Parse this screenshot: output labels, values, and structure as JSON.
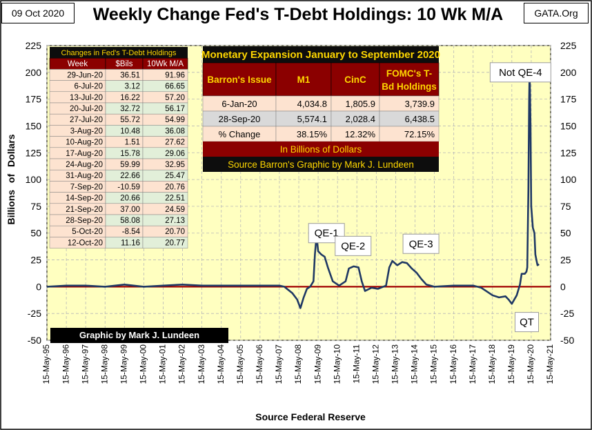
{
  "header": {
    "date": "09 Oct 2020",
    "title": "Weekly Change Fed's T-Debt Holdings: 10 Wk M/A",
    "site": "GATA.Org"
  },
  "axes": {
    "ylabel": "Billions  of  Dollars",
    "xtitle": "Source Federal Reserve",
    "credit": "Graphic by Mark J. Lundeen"
  },
  "chart_data": {
    "type": "line",
    "title": "Weekly Change Fed's T-Debt Holdings: 10 Wk M/A",
    "xlabel": "Source Federal Reserve",
    "ylabel": "Billions of Dollars",
    "ylim": [
      -50,
      225
    ],
    "yticks": [
      -50,
      -25,
      0,
      25,
      50,
      75,
      100,
      125,
      150,
      175,
      200,
      225
    ],
    "xlim": [
      "1995-05-15",
      "2021-05-15"
    ],
    "xticks": [
      "15-May-95",
      "15-May-96",
      "15-May-97",
      "15-May-98",
      "15-May-99",
      "15-May-00",
      "15-May-01",
      "15-May-02",
      "15-May-03",
      "15-May-04",
      "15-May-05",
      "15-May-06",
      "15-May-07",
      "15-May-08",
      "15-May-09",
      "15-May-10",
      "15-May-11",
      "15-May-12",
      "15-May-13",
      "15-May-14",
      "15-May-15",
      "15-May-16",
      "15-May-17",
      "15-May-18",
      "15-May-19",
      "15-May-20",
      "15-May-21"
    ],
    "grid": true,
    "line_color": "#1f3864",
    "zero_line_color": "#a00000",
    "plot_bg": "#ffffc0",
    "series": [
      {
        "values": [
          [
            "1995-05-15",
            0
          ],
          [
            "1996-05-15",
            1
          ],
          [
            "1997-05-15",
            1
          ],
          [
            "1998-05-15",
            0
          ],
          [
            "1999-05-15",
            2
          ],
          [
            "2000-05-15",
            0
          ],
          [
            "2001-05-15",
            1
          ],
          [
            "2002-05-15",
            2
          ],
          [
            "2003-05-15",
            1
          ],
          [
            "2004-05-15",
            1
          ],
          [
            "2005-05-15",
            1
          ],
          [
            "2006-05-15",
            1
          ],
          [
            "2007-05-15",
            1
          ],
          [
            "2007-08-15",
            0
          ],
          [
            "2008-01-15",
            -6
          ],
          [
            "2008-04-15",
            -12
          ],
          [
            "2008-06-15",
            -20
          ],
          [
            "2008-08-15",
            -10
          ],
          [
            "2008-10-15",
            -2
          ],
          [
            "2008-12-15",
            0
          ],
          [
            "2009-02-15",
            5
          ],
          [
            "2009-03-15",
            30
          ],
          [
            "2009-04-15",
            48
          ],
          [
            "2009-05-15",
            33
          ],
          [
            "2009-07-15",
            30
          ],
          [
            "2009-09-15",
            28
          ],
          [
            "2009-11-15",
            18
          ],
          [
            "2010-02-15",
            5
          ],
          [
            "2010-06-15",
            1
          ],
          [
            "2010-10-15",
            5
          ],
          [
            "2010-12-15",
            17
          ],
          [
            "2011-03-15",
            19
          ],
          [
            "2011-06-15",
            18
          ],
          [
            "2011-08-15",
            5
          ],
          [
            "2011-10-15",
            -4
          ],
          [
            "2012-02-15",
            -1
          ],
          [
            "2012-06-15",
            -2
          ],
          [
            "2012-11-15",
            1
          ],
          [
            "2013-01-15",
            18
          ],
          [
            "2013-03-15",
            24
          ],
          [
            "2013-06-15",
            20
          ],
          [
            "2013-09-15",
            23
          ],
          [
            "2013-12-15",
            22
          ],
          [
            "2014-03-15",
            17
          ],
          [
            "2014-06-15",
            13
          ],
          [
            "2014-09-15",
            7
          ],
          [
            "2014-12-15",
            2
          ],
          [
            "2015-05-15",
            0
          ],
          [
            "2016-05-15",
            1
          ],
          [
            "2017-05-15",
            1
          ],
          [
            "2017-10-15",
            -1
          ],
          [
            "2018-01-15",
            -4
          ],
          [
            "2018-05-15",
            -8
          ],
          [
            "2018-09-15",
            -10
          ],
          [
            "2019-01-15",
            -9
          ],
          [
            "2019-03-15",
            -12
          ],
          [
            "2019-05-15",
            -16
          ],
          [
            "2019-08-15",
            -8
          ],
          [
            "2019-10-15",
            2
          ],
          [
            "2019-11-15",
            12
          ],
          [
            "2020-01-15",
            12
          ],
          [
            "2020-02-15",
            14
          ],
          [
            "2020-03-01",
            18
          ],
          [
            "2020-03-22",
            90
          ],
          [
            "2020-04-05",
            175
          ],
          [
            "2020-04-15",
            202
          ],
          [
            "2020-05-01",
            150
          ],
          [
            "2020-05-15",
            75
          ],
          [
            "2020-06-15",
            55
          ],
          [
            "2020-07-15",
            50
          ],
          [
            "2020-08-01",
            30
          ],
          [
            "2020-08-20",
            25
          ],
          [
            "2020-09-10",
            20
          ],
          [
            "2020-10-09",
            21
          ]
        ]
      }
    ],
    "annotations": [
      {
        "label": "QE-1",
        "x": "2008-11-15",
        "y": 50
      },
      {
        "label": "QE-2",
        "x": "2010-04-01",
        "y": 38
      },
      {
        "label": "QE-3",
        "x": "2013-10-01",
        "y": 40
      },
      {
        "label": "Not QE-4",
        "x": "2018-04-01",
        "y": 200
      },
      {
        "label": "QT",
        "x": "2019-07-15",
        "y": -33
      }
    ]
  },
  "table_left": {
    "caption": "Changes in Fed's T-Debt Holdings",
    "headers": [
      "Week",
      "$Bils",
      "10Wk M/A"
    ],
    "rows": [
      [
        "29-Jun-20",
        "36.51",
        "91.96"
      ],
      [
        "6-Jul-20",
        "3.12",
        "66.65"
      ],
      [
        "13-Jul-20",
        "16.22",
        "57.20"
      ],
      [
        "20-Jul-20",
        "32.72",
        "56.17"
      ],
      [
        "27-Jul-20",
        "55.72",
        "54.99"
      ],
      [
        "3-Aug-20",
        "10.48",
        "36.08"
      ],
      [
        "10-Aug-20",
        "1.51",
        "27.62"
      ],
      [
        "17-Aug-20",
        "15.78",
        "29.06"
      ],
      [
        "24-Aug-20",
        "59.99",
        "32.95"
      ],
      [
        "31-Aug-20",
        "22.66",
        "25.47"
      ],
      [
        "7-Sep-20",
        "-10.59",
        "20.76"
      ],
      [
        "14-Sep-20",
        "20.66",
        "22.51"
      ],
      [
        "21-Sep-20",
        "37.00",
        "24.59"
      ],
      [
        "28-Sep-20",
        "58.08",
        "27.13"
      ],
      [
        "5-Oct-20",
        "-8.54",
        "20.70"
      ],
      [
        "12-Oct-20",
        "11.16",
        "20.77"
      ]
    ]
  },
  "table_right": {
    "caption": "Monetary Expansion January to September 2020",
    "headers": [
      "Barron's Issue",
      "M1",
      "CinC",
      "FOMC's T-Bd Holdings"
    ],
    "rows": [
      [
        "6-Jan-20",
        "4,034.8",
        "1,805.9",
        "3,739.9"
      ],
      [
        "28-Sep-20",
        "5,574.1",
        "2,028.4",
        "6,438.5"
      ],
      [
        "% Change",
        "38.15%",
        "12.32%",
        "72.15%"
      ]
    ],
    "footer1": "In Billions of Dollars",
    "footer2": "Source Barron's   Graphic by Mark J. Lundeen"
  }
}
